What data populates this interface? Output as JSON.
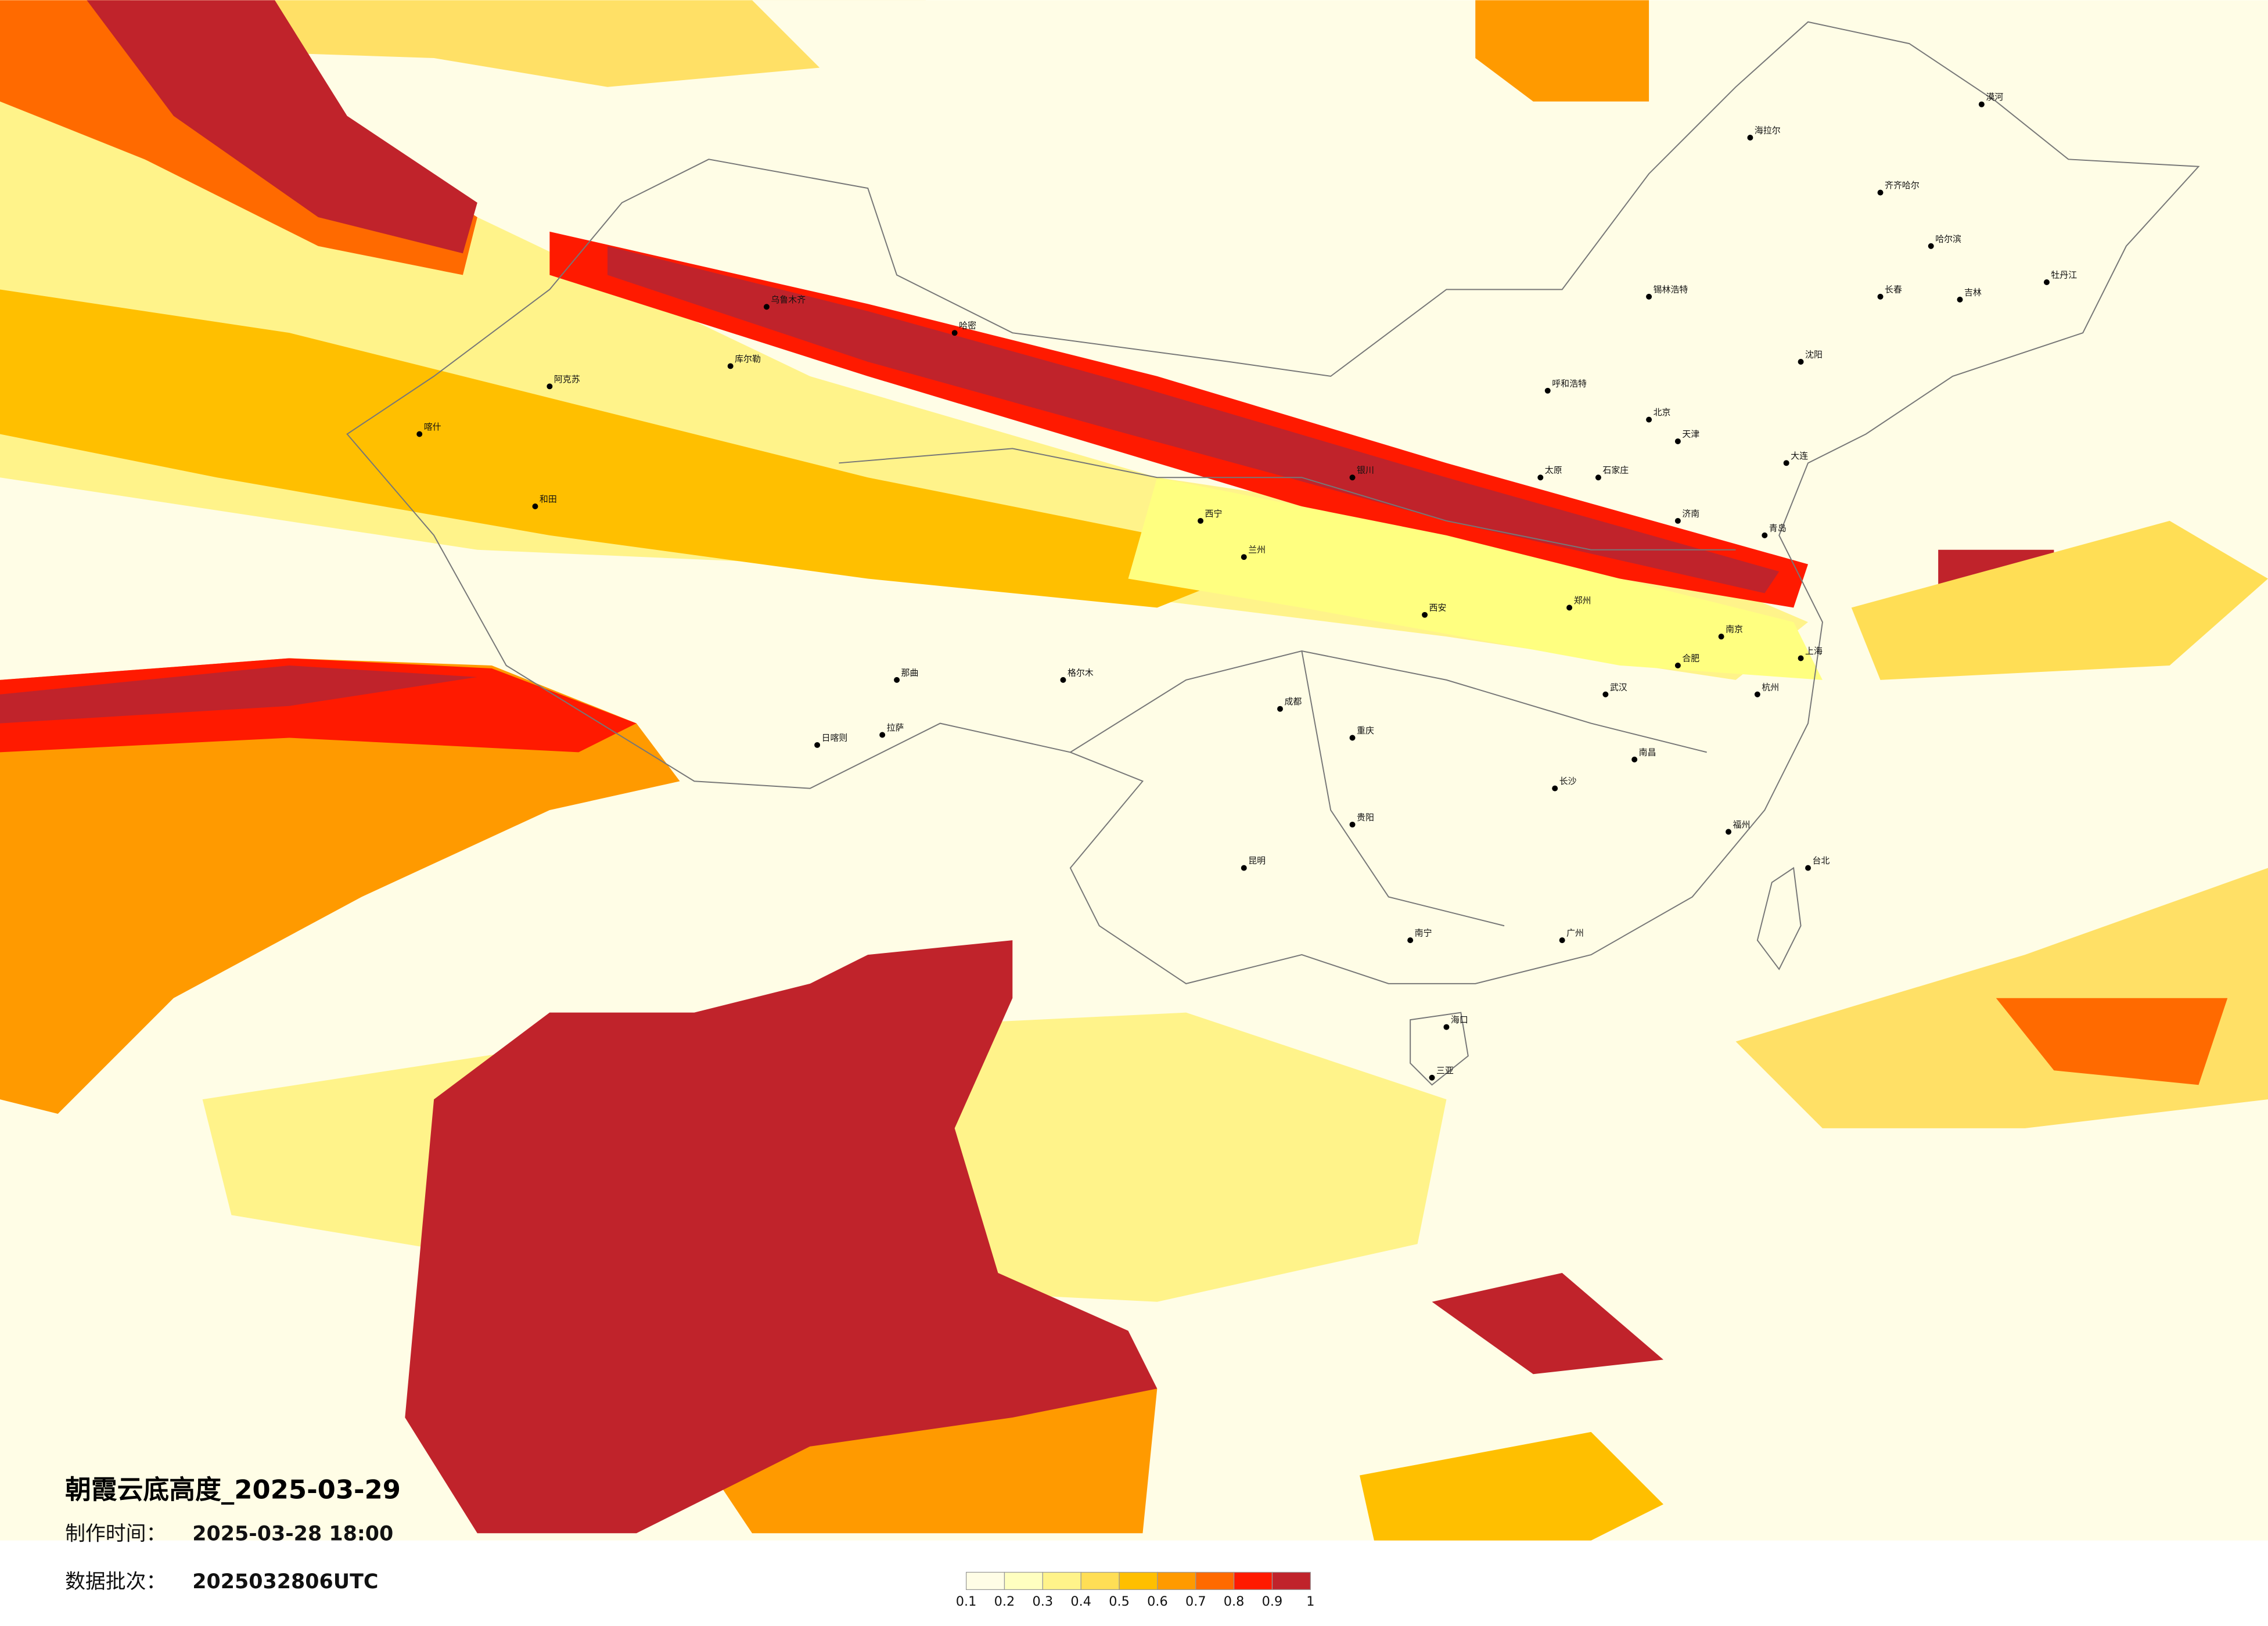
{
  "title": "朝霞云底高度_2025-03-29",
  "made_time_label": "制作时间：",
  "made_time": "2025-03-28 18:00",
  "batch_label": "数据批次：",
  "batch": "2025032806UTC",
  "legend": {
    "ticks": [
      0.1,
      0.2,
      0.3,
      0.4,
      0.5,
      0.6,
      0.7,
      0.8,
      0.9,
      1
    ],
    "colors": [
      "#fffde6",
      "#ffffc0",
      "#fff38a",
      "#ffde55",
      "#ffbf00",
      "#ff9a00",
      "#ff6a00",
      "#ff1a00",
      "#c0232b"
    ]
  },
  "cities": [
    "乌鲁木齐",
    "哈密",
    "库尔勒",
    "阿克苏",
    "喀什",
    "和田",
    "格尔木",
    "拉萨",
    "日喀则",
    "那曲",
    "西宁",
    "兰州",
    "成都",
    "重庆",
    "昆明",
    "贵阳",
    "南宁",
    "广州",
    "海口",
    "三亚",
    "福州",
    "台北",
    "上海",
    "南京",
    "杭州",
    "武汉",
    "长沙",
    "南昌",
    "郑州",
    "西安",
    "太原",
    "石家庄",
    "北京",
    "天津",
    "济南",
    "呼和浩特",
    "银川",
    "沈阳",
    "长春",
    "哈尔滨",
    "海拉尔",
    "漠河",
    "齐齐哈尔",
    "锡林浩特",
    "吉林",
    "牡丹江",
    "大连",
    "青岛",
    "合肥"
  ]
}
